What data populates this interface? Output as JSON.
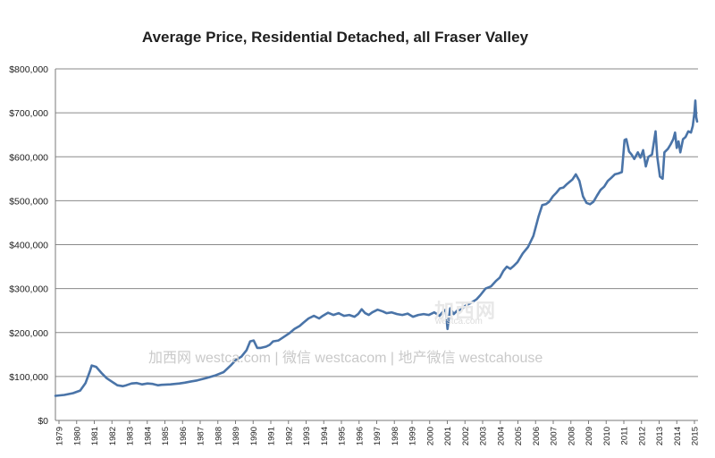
{
  "chart_data": {
    "type": "line",
    "title": "Average Price, Residential Detached, all Fraser Valley",
    "xlabel": "",
    "ylabel": "",
    "ylim": [
      0,
      800000
    ],
    "y_ticks": [
      0,
      100000,
      200000,
      300000,
      400000,
      500000,
      600000,
      700000,
      800000
    ],
    "y_tick_labels": [
      "$0",
      "$100,000",
      "$200,000",
      "$300,000",
      "$400,000",
      "$500,000",
      "$600,000",
      "$700,000",
      "$800,000"
    ],
    "xlim": [
      1979,
      2015.3
    ],
    "x_tick_labels": [
      "1979",
      "1980",
      "1981",
      "1982",
      "1983",
      "1984",
      "1985",
      "1986",
      "1987",
      "1988",
      "1989",
      "1990",
      "1991",
      "1992",
      "1993",
      "1994",
      "1995",
      "1996",
      "1997",
      "1998",
      "1999",
      "2000",
      "2001",
      "2002",
      "2003",
      "2004",
      "2005",
      "2006",
      "2007",
      "2008",
      "2009",
      "2010",
      "2011",
      "2012",
      "2013",
      "2014",
      "2015"
    ],
    "grid": true,
    "legend": "none",
    "series": [
      {
        "name": "Average Price",
        "color": "#4a74a8",
        "points": [
          [
            1979.0,
            56000
          ],
          [
            1979.5,
            58000
          ],
          [
            1980.0,
            62000
          ],
          [
            1980.4,
            68000
          ],
          [
            1980.7,
            85000
          ],
          [
            1980.95,
            112000
          ],
          [
            1981.05,
            125000
          ],
          [
            1981.3,
            122000
          ],
          [
            1981.6,
            108000
          ],
          [
            1981.9,
            96000
          ],
          [
            1982.2,
            88000
          ],
          [
            1982.5,
            80000
          ],
          [
            1982.8,
            78000
          ],
          [
            1983.0,
            80000
          ],
          [
            1983.3,
            84000
          ],
          [
            1983.6,
            85000
          ],
          [
            1983.9,
            82000
          ],
          [
            1984.2,
            84000
          ],
          [
            1984.5,
            83000
          ],
          [
            1984.8,
            80000
          ],
          [
            1985.0,
            81000
          ],
          [
            1985.5,
            82000
          ],
          [
            1986.0,
            84000
          ],
          [
            1986.3,
            86000
          ],
          [
            1986.7,
            89000
          ],
          [
            1987.0,
            91000
          ],
          [
            1987.5,
            96000
          ],
          [
            1988.0,
            102000
          ],
          [
            1988.5,
            110000
          ],
          [
            1988.9,
            125000
          ],
          [
            1989.2,
            138000
          ],
          [
            1989.5,
            145000
          ],
          [
            1989.8,
            160000
          ],
          [
            1990.0,
            180000
          ],
          [
            1990.2,
            182000
          ],
          [
            1990.4,
            165000
          ],
          [
            1990.6,
            165000
          ],
          [
            1990.9,
            168000
          ],
          [
            1991.1,
            172000
          ],
          [
            1991.3,
            180000
          ],
          [
            1991.6,
            182000
          ],
          [
            1991.9,
            190000
          ],
          [
            1992.2,
            198000
          ],
          [
            1992.5,
            208000
          ],
          [
            1992.8,
            215000
          ],
          [
            1993.0,
            222000
          ],
          [
            1993.3,
            232000
          ],
          [
            1993.6,
            238000
          ],
          [
            1993.9,
            232000
          ],
          [
            1994.1,
            238000
          ],
          [
            1994.4,
            245000
          ],
          [
            1994.7,
            240000
          ],
          [
            1995.0,
            244000
          ],
          [
            1995.3,
            238000
          ],
          [
            1995.6,
            240000
          ],
          [
            1995.9,
            236000
          ],
          [
            1996.1,
            242000
          ],
          [
            1996.3,
            253000
          ],
          [
            1996.5,
            244000
          ],
          [
            1996.7,
            240000
          ],
          [
            1996.9,
            246000
          ],
          [
            1997.2,
            252000
          ],
          [
            1997.5,
            248000
          ],
          [
            1997.7,
            244000
          ],
          [
            1998.0,
            246000
          ],
          [
            1998.3,
            242000
          ],
          [
            1998.6,
            240000
          ],
          [
            1998.9,
            243000
          ],
          [
            1999.2,
            236000
          ],
          [
            1999.5,
            240000
          ],
          [
            1999.8,
            242000
          ],
          [
            2000.1,
            240000
          ],
          [
            2000.4,
            246000
          ],
          [
            2000.7,
            238000
          ],
          [
            2000.9,
            248000
          ],
          [
            2001.05,
            252000
          ],
          [
            2001.15,
            208000
          ],
          [
            2001.3,
            255000
          ],
          [
            2001.5,
            242000
          ],
          [
            2001.7,
            250000
          ],
          [
            2001.9,
            252000
          ],
          [
            2002.2,
            262000
          ],
          [
            2002.5,
            268000
          ],
          [
            2002.8,
            276000
          ],
          [
            2003.0,
            285000
          ],
          [
            2003.3,
            300000
          ],
          [
            2003.6,
            305000
          ],
          [
            2003.9,
            318000
          ],
          [
            2004.1,
            325000
          ],
          [
            2004.3,
            340000
          ],
          [
            2004.5,
            350000
          ],
          [
            2004.7,
            345000
          ],
          [
            2004.9,
            352000
          ],
          [
            2005.1,
            360000
          ],
          [
            2005.4,
            380000
          ],
          [
            2005.7,
            395000
          ],
          [
            2006.0,
            420000
          ],
          [
            2006.3,
            465000
          ],
          [
            2006.5,
            490000
          ],
          [
            2006.7,
            492000
          ],
          [
            2006.9,
            498000
          ],
          [
            2007.1,
            510000
          ],
          [
            2007.3,
            518000
          ],
          [
            2007.5,
            528000
          ],
          [
            2007.7,
            530000
          ],
          [
            2007.9,
            538000
          ],
          [
            2008.2,
            548000
          ],
          [
            2008.4,
            560000
          ],
          [
            2008.6,
            545000
          ],
          [
            2008.8,
            510000
          ],
          [
            2009.0,
            495000
          ],
          [
            2009.2,
            492000
          ],
          [
            2009.4,
            498000
          ],
          [
            2009.6,
            512000
          ],
          [
            2009.8,
            525000
          ],
          [
            2010.0,
            532000
          ],
          [
            2010.2,
            545000
          ],
          [
            2010.4,
            552000
          ],
          [
            2010.6,
            560000
          ],
          [
            2010.8,
            562000
          ],
          [
            2011.0,
            565000
          ],
          [
            2011.15,
            638000
          ],
          [
            2011.25,
            640000
          ],
          [
            2011.4,
            612000
          ],
          [
            2011.55,
            605000
          ],
          [
            2011.7,
            595000
          ],
          [
            2011.9,
            610000
          ],
          [
            2012.05,
            598000
          ],
          [
            2012.2,
            615000
          ],
          [
            2012.35,
            578000
          ],
          [
            2012.5,
            600000
          ],
          [
            2012.7,
            605000
          ],
          [
            2012.9,
            658000
          ],
          [
            2013.0,
            600000
          ],
          [
            2013.15,
            555000
          ],
          [
            2013.3,
            550000
          ],
          [
            2013.4,
            610000
          ],
          [
            2013.6,
            618000
          ],
          [
            2013.75,
            628000
          ],
          [
            2013.9,
            640000
          ],
          [
            2014.0,
            655000
          ],
          [
            2014.1,
            620000
          ],
          [
            2014.2,
            635000
          ],
          [
            2014.3,
            610000
          ],
          [
            2014.45,
            640000
          ],
          [
            2014.6,
            645000
          ],
          [
            2014.75,
            658000
          ],
          [
            2014.9,
            655000
          ],
          [
            2015.0,
            670000
          ],
          [
            2015.1,
            700000
          ],
          [
            2015.15,
            728000
          ],
          [
            2015.2,
            690000
          ],
          [
            2015.25,
            680000
          ]
        ]
      }
    ]
  },
  "watermark": {
    "text": "加西网 westca.com | 微信 westcacom | 地产微信 westcahouse",
    "logo": "加西网",
    "logo_sub": "westca.com"
  }
}
